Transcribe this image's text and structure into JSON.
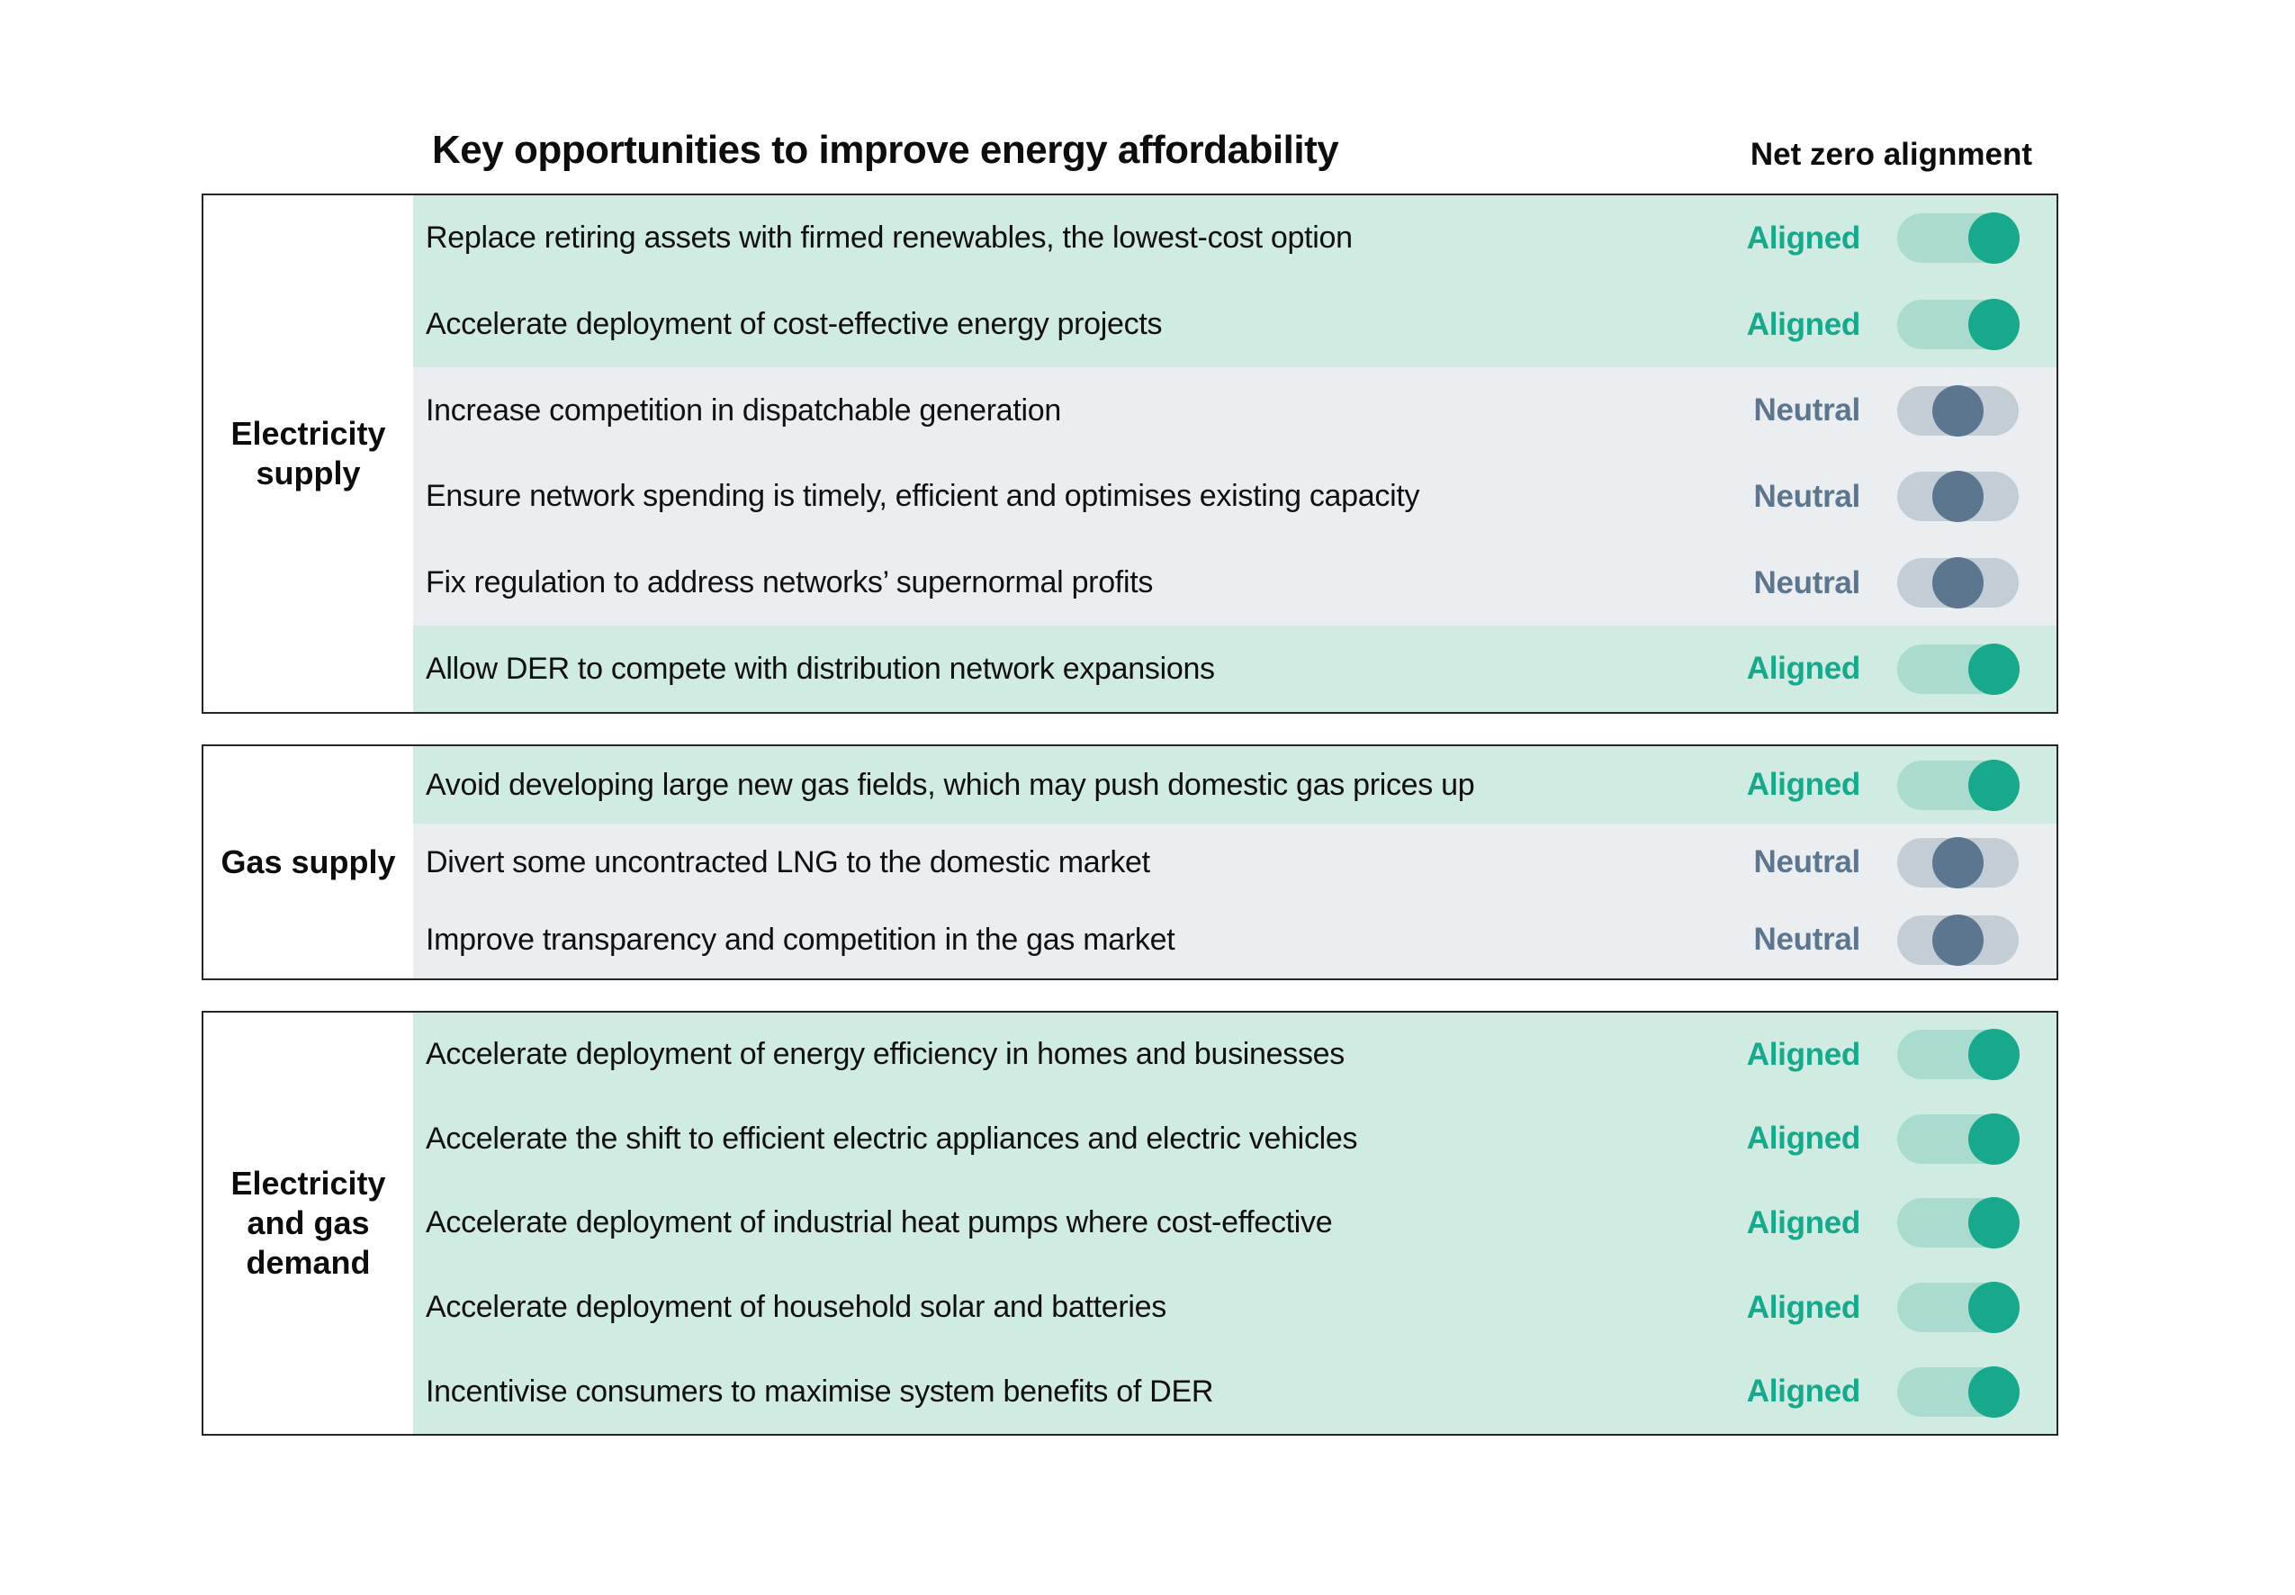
{
  "header": {
    "title": "Key opportunities to improve energy affordability",
    "alignment_column": "Net zero alignment"
  },
  "colors": {
    "aligned_row_bg": "#d0ebe2",
    "aligned_accent": "#18a88c",
    "aligned_track": "#a9dccf",
    "neutral_row_bg": "#eaeef1",
    "neutral_accent": "#5d7690",
    "neutral_track": "#c3cdd6",
    "border": "#262626",
    "text": "#101010"
  },
  "status_labels": {
    "aligned": "Aligned",
    "neutral": "Neutral"
  },
  "sections": [
    {
      "category": "Electricity supply",
      "rows": [
        {
          "text": "Replace retiring assets with firmed renewables, the lowest-cost option",
          "status": "Aligned",
          "state": "aligned"
        },
        {
          "text": "Accelerate deployment of cost-effective energy projects",
          "status": "Aligned",
          "state": "aligned"
        },
        {
          "text": "Increase competition in dispatchable generation",
          "status": "Neutral",
          "state": "neutral"
        },
        {
          "text": "Ensure network spending is timely, efficient and optimises existing capacity",
          "status": "Neutral",
          "state": "neutral"
        },
        {
          "text": "Fix regulation to address networks’ supernormal profits",
          "status": "Neutral",
          "state": "neutral"
        },
        {
          "text": "Allow DER to compete with distribution network expansions",
          "status": "Aligned",
          "state": "aligned"
        }
      ]
    },
    {
      "category": "Gas supply",
      "rows": [
        {
          "text": "Avoid developing large new gas fields, which may push domestic gas prices up",
          "status": "Aligned",
          "state": "aligned"
        },
        {
          "text": "Divert some uncontracted LNG to the domestic market",
          "status": "Neutral",
          "state": "neutral"
        },
        {
          "text": "Improve transparency and competition in the gas market",
          "status": "Neutral",
          "state": "neutral"
        }
      ]
    },
    {
      "category": "Electricity and gas demand",
      "rows": [
        {
          "text": "Accelerate deployment of energy efficiency in homes and businesses",
          "status": "Aligned",
          "state": "aligned"
        },
        {
          "text": "Accelerate the shift to efficient electric appliances and electric vehicles",
          "status": "Aligned",
          "state": "aligned"
        },
        {
          "text": "Accelerate deployment of industrial heat pumps where cost-effective",
          "status": "Aligned",
          "state": "aligned"
        },
        {
          "text": "Accelerate deployment of household solar and batteries",
          "status": "Aligned",
          "state": "aligned"
        },
        {
          "text": "Incentivise consumers to maximise system benefits of DER",
          "status": "Aligned",
          "state": "aligned"
        }
      ]
    }
  ]
}
